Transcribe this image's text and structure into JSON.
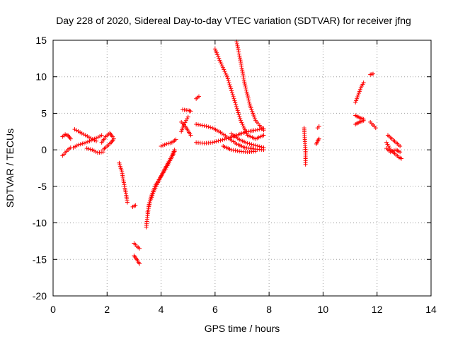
{
  "chart_data": {
    "type": "scatter",
    "title": "Day 228 of 2020, Sidereal Day-to-day VTEC variation (SDTVAR) for receiver jfng",
    "xlabel": "GPS time / hours",
    "ylabel": "SDTVAR / TECUs",
    "xlim": [
      0,
      14
    ],
    "ylim": [
      -20,
      15
    ],
    "xticks": [
      0,
      2,
      4,
      6,
      8,
      10,
      12,
      14
    ],
    "yticks": [
      -20,
      -15,
      -10,
      -5,
      0,
      5,
      10,
      15
    ],
    "grid": true,
    "marker": "+",
    "color": "#ff0000",
    "tracks": [
      [
        [
          0.35,
          1.8
        ],
        [
          0.45,
          2.1
        ],
        [
          0.55,
          2.0
        ],
        [
          0.65,
          1.5
        ]
      ],
      [
        [
          0.35,
          -0.8
        ],
        [
          0.45,
          -0.4
        ],
        [
          0.55,
          0.0
        ],
        [
          0.65,
          0.3
        ]
      ],
      [
        [
          0.8,
          2.8
        ],
        [
          1.0,
          2.4
        ],
        [
          1.2,
          2.0
        ],
        [
          1.4,
          1.6
        ],
        [
          1.6,
          1.2
        ]
      ],
      [
        [
          0.75,
          0.3
        ],
        [
          0.95,
          0.7
        ],
        [
          1.15,
          0.9
        ],
        [
          1.35,
          1.2
        ],
        [
          1.6,
          1.6
        ],
        [
          1.8,
          2.0
        ]
      ],
      [
        [
          1.25,
          0.2
        ],
        [
          1.45,
          0.0
        ],
        [
          1.65,
          -0.4
        ],
        [
          1.85,
          -0.3
        ]
      ],
      [
        [
          1.8,
          1.0
        ],
        [
          1.95,
          1.8
        ],
        [
          2.1,
          2.3
        ],
        [
          2.2,
          1.8
        ]
      ],
      [
        [
          1.85,
          0.0
        ],
        [
          2.0,
          0.5
        ],
        [
          2.15,
          1.0
        ],
        [
          2.25,
          1.5
        ]
      ],
      [
        [
          2.45,
          -1.8
        ],
        [
          2.55,
          -3.0
        ],
        [
          2.62,
          -4.5
        ],
        [
          2.7,
          -6.0
        ],
        [
          2.75,
          -7.2
        ]
      ],
      [
        [
          2.95,
          -7.8
        ],
        [
          3.05,
          -7.6
        ]
      ],
      [
        [
          3.0,
          -12.8
        ],
        [
          3.1,
          -13.2
        ],
        [
          3.2,
          -13.5
        ]
      ],
      [
        [
          3.0,
          -14.5
        ],
        [
          3.1,
          -15.0
        ],
        [
          3.2,
          -15.6
        ]
      ],
      [
        [
          3.45,
          -10.6
        ],
        [
          3.5,
          -9.0
        ],
        [
          3.55,
          -7.5
        ],
        [
          3.65,
          -6.2
        ],
        [
          3.8,
          -4.8
        ],
        [
          4.0,
          -3.6
        ],
        [
          4.2,
          -2.4
        ],
        [
          4.4,
          -1.0
        ],
        [
          4.5,
          -0.2
        ]
      ],
      [
        [
          3.5,
          -8.5
        ],
        [
          3.6,
          -7.0
        ],
        [
          3.75,
          -5.5
        ],
        [
          3.95,
          -4.0
        ],
        [
          4.15,
          -2.5
        ],
        [
          4.35,
          -1.2
        ],
        [
          4.5,
          0.0
        ]
      ],
      [
        [
          4.0,
          0.5
        ],
        [
          4.2,
          0.8
        ],
        [
          4.4,
          1.0
        ],
        [
          4.55,
          1.4
        ]
      ],
      [
        [
          4.75,
          2.5
        ],
        [
          4.85,
          3.5
        ],
        [
          5.0,
          4.5
        ]
      ],
      [
        [
          4.8,
          5.5
        ],
        [
          5.0,
          5.4
        ],
        [
          5.1,
          5.3
        ]
      ],
      [
        [
          4.75,
          3.8
        ],
        [
          4.9,
          3.2
        ],
        [
          5.0,
          2.6
        ],
        [
          5.1,
          2.0
        ]
      ],
      [
        [
          5.3,
          7.0
        ],
        [
          5.4,
          7.3
        ]
      ],
      [
        [
          5.3,
          3.5
        ],
        [
          5.6,
          3.3
        ],
        [
          5.9,
          3.0
        ],
        [
          6.2,
          2.4
        ],
        [
          6.5,
          1.6
        ],
        [
          6.8,
          0.8
        ],
        [
          7.1,
          0.3
        ],
        [
          7.5,
          0.1
        ],
        [
          7.8,
          0.0
        ]
      ],
      [
        [
          5.3,
          1.0
        ],
        [
          5.6,
          0.9
        ],
        [
          5.9,
          1.0
        ],
        [
          6.2,
          1.3
        ],
        [
          6.5,
          1.6
        ],
        [
          6.8,
          2.0
        ],
        [
          7.1,
          2.4
        ],
        [
          7.5,
          2.7
        ],
        [
          7.8,
          2.9
        ]
      ],
      [
        [
          6.0,
          13.8
        ],
        [
          6.2,
          12.0
        ],
        [
          6.45,
          10.0
        ],
        [
          6.7,
          7.0
        ],
        [
          6.95,
          4.0
        ],
        [
          7.2,
          2.0
        ],
        [
          7.5,
          1.5
        ],
        [
          7.8,
          2.0
        ]
      ],
      [
        [
          6.8,
          14.8
        ],
        [
          6.95,
          12.0
        ],
        [
          7.1,
          9.0
        ],
        [
          7.3,
          6.0
        ],
        [
          7.5,
          4.0
        ],
        [
          7.8,
          2.7
        ]
      ],
      [
        [
          6.6,
          2.2
        ],
        [
          6.9,
          1.4
        ],
        [
          7.2,
          0.9
        ],
        [
          7.5,
          0.6
        ],
        [
          7.8,
          0.3
        ]
      ],
      [
        [
          6.3,
          0.5
        ],
        [
          6.6,
          0.0
        ],
        [
          6.9,
          -0.2
        ],
        [
          7.2,
          -0.3
        ],
        [
          7.5,
          -0.2
        ]
      ],
      [
        [
          9.3,
          3.0
        ],
        [
          9.35,
          -0.2
        ],
        [
          9.35,
          -1.2
        ],
        [
          9.35,
          -2.0
        ]
      ],
      [
        [
          9.8,
          3.0
        ],
        [
          9.85,
          3.2
        ]
      ],
      [
        [
          9.75,
          0.8
        ],
        [
          9.8,
          1.2
        ],
        [
          9.85,
          1.5
        ]
      ],
      [
        [
          11.2,
          6.5
        ],
        [
          11.3,
          7.5
        ],
        [
          11.4,
          8.5
        ],
        [
          11.5,
          9.2
        ]
      ],
      [
        [
          11.2,
          4.7
        ],
        [
          11.35,
          4.4
        ],
        [
          11.5,
          4.2
        ]
      ],
      [
        [
          11.2,
          3.5
        ],
        [
          11.35,
          3.8
        ],
        [
          11.5,
          4.0
        ]
      ],
      [
        [
          11.75,
          10.3
        ],
        [
          11.85,
          10.4
        ]
      ],
      [
        [
          11.75,
          3.8
        ],
        [
          11.85,
          3.4
        ],
        [
          11.95,
          3.0
        ]
      ],
      [
        [
          12.4,
          2.0
        ],
        [
          12.55,
          1.5
        ],
        [
          12.7,
          1.0
        ],
        [
          12.85,
          0.5
        ]
      ],
      [
        [
          12.35,
          1.0
        ],
        [
          12.5,
          0.0
        ],
        [
          12.65,
          -0.5
        ],
        [
          12.8,
          -1.0
        ],
        [
          12.9,
          -1.2
        ]
      ],
      [
        [
          12.35,
          0.2
        ],
        [
          12.5,
          -0.3
        ],
        [
          12.7,
          0.0
        ],
        [
          12.85,
          -0.3
        ]
      ]
    ]
  }
}
